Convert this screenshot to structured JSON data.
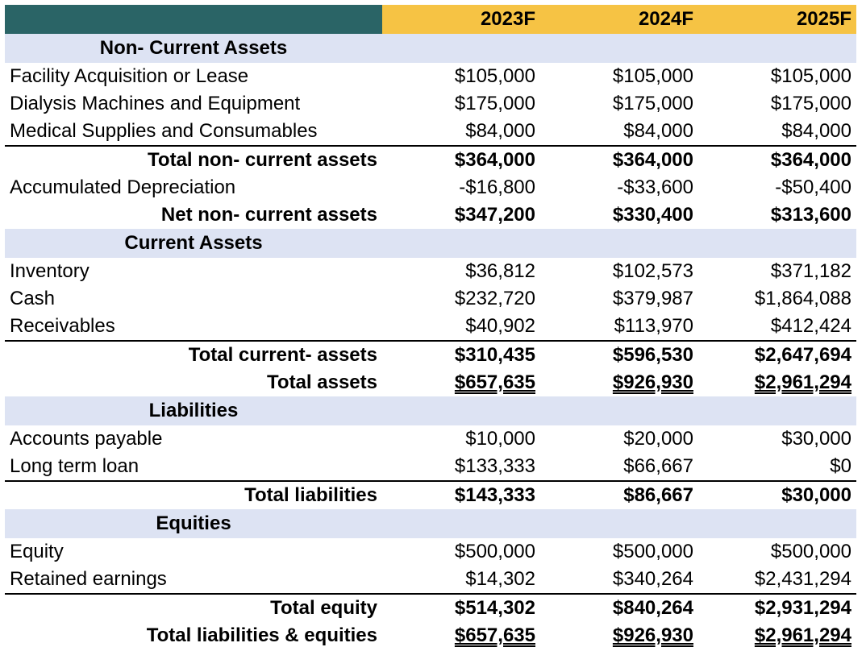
{
  "years": [
    "2023F",
    "2024F",
    "2025F"
  ],
  "sections": {
    "noncurrent": {
      "title": "Non- Current Assets",
      "rows": [
        {
          "label": "Facility Acquisition or Lease",
          "v": [
            "$105,000",
            "$105,000",
            "$105,000"
          ]
        },
        {
          "label": "Dialysis Machines and Equipment",
          "v": [
            "$175,000",
            "$175,000",
            "$175,000"
          ]
        },
        {
          "label": "Medical Supplies and Consumables",
          "v": [
            "$84,000",
            "$84,000",
            "$84,000"
          ]
        }
      ],
      "total": {
        "label": "Total non- current assets",
        "v": [
          "$364,000",
          "$364,000",
          "$364,000"
        ]
      },
      "depreciation": {
        "label": "Accumulated Depreciation",
        "v": [
          "-$16,800",
          "-$33,600",
          "-$50,400"
        ]
      },
      "net": {
        "label": "Net non- current assets",
        "v": [
          "$347,200",
          "$330,400",
          "$313,600"
        ]
      }
    },
    "current": {
      "title": "Current Assets",
      "rows": [
        {
          "label": "Inventory",
          "v": [
            "$36,812",
            "$102,573",
            "$371,182"
          ]
        },
        {
          "label": "Cash",
          "v": [
            "$232,720",
            "$379,987",
            "$1,864,088"
          ]
        },
        {
          "label": "Receivables",
          "v": [
            "$40,902",
            "$113,970",
            "$412,424"
          ]
        }
      ],
      "total": {
        "label": "Total current- assets",
        "v": [
          "$310,435",
          "$596,530",
          "$2,647,694"
        ]
      },
      "total_assets": {
        "label": "Total assets",
        "v": [
          "$657,635",
          "$926,930",
          "$2,961,294"
        ]
      }
    },
    "liabilities": {
      "title": "Liabilities",
      "rows": [
        {
          "label": "Accounts payable",
          "v": [
            "$10,000",
            "$20,000",
            "$30,000"
          ]
        },
        {
          "label": "Long term loan",
          "v": [
            "$133,333",
            "$66,667",
            "$0"
          ]
        }
      ],
      "total": {
        "label": "Total liabilities",
        "v": [
          "$143,333",
          "$86,667",
          "$30,000"
        ]
      }
    },
    "equities": {
      "title": "Equities",
      "rows": [
        {
          "label": "Equity",
          "v": [
            "$500,000",
            "$500,000",
            "$500,000"
          ]
        },
        {
          "label": "Retained earnings",
          "v": [
            "$14,302",
            "$340,264",
            "$2,431,294"
          ]
        }
      ],
      "total": {
        "label": "Total equity",
        "v": [
          "$514,302",
          "$840,264",
          "$2,931,294"
        ]
      },
      "grand_total": {
        "label": "Total liabilities & equities",
        "v": [
          "$657,635",
          "$926,930",
          "$2,961,294"
        ]
      }
    }
  },
  "colors": {
    "header_dark": "#2a6466",
    "header_gold": "#f6c344",
    "section_band": "#dde3f3"
  }
}
